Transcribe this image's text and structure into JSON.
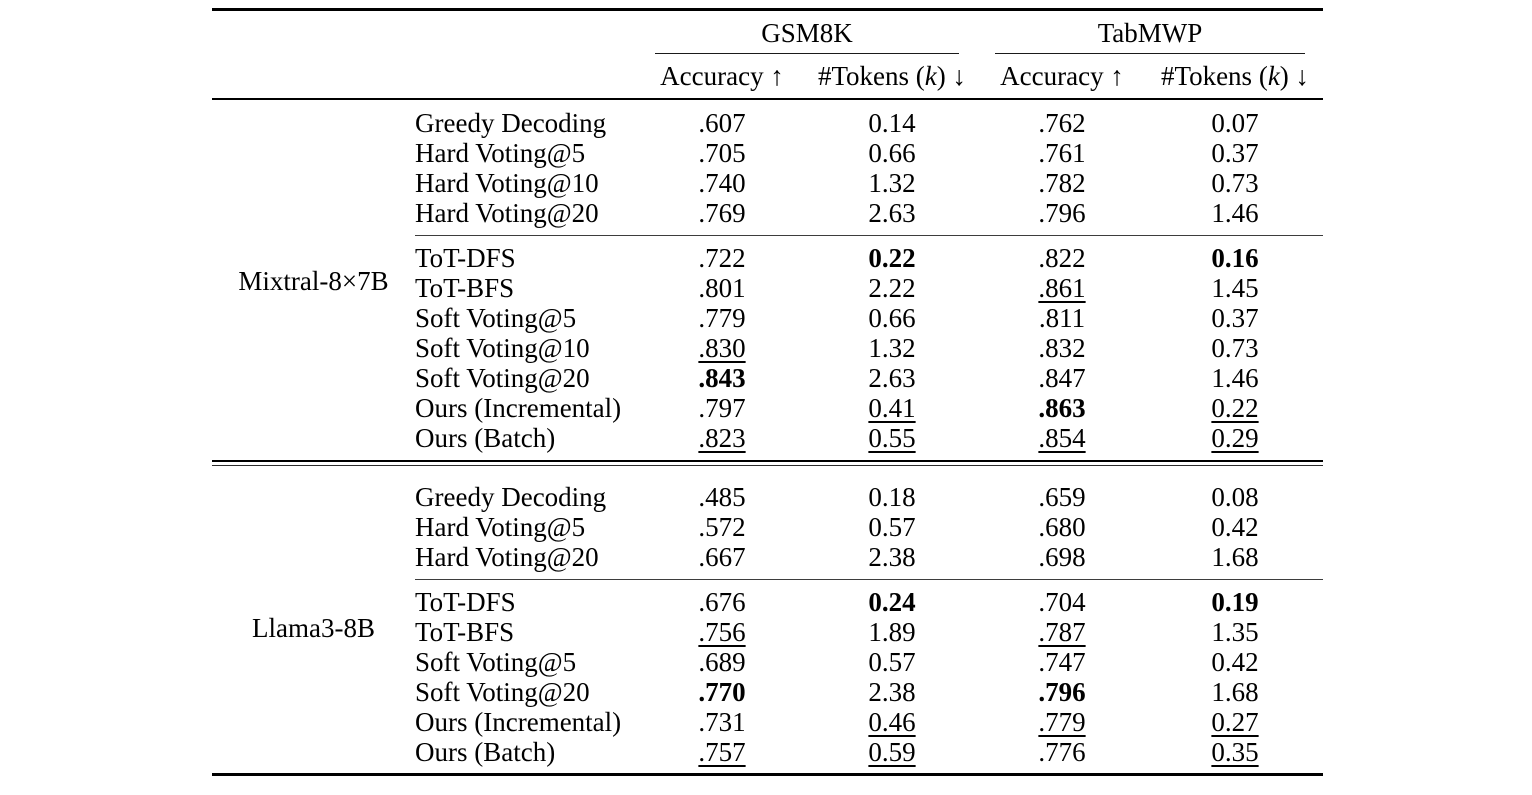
{
  "table": {
    "groups": [
      {
        "label": "GSM8K"
      },
      {
        "label": "TabMWP"
      }
    ],
    "subheader": {
      "accuracy": "Accuracy ↑",
      "tokens_prefix": "#Tokens (",
      "tokens_k": "k",
      "tokens_suffix": ") ↓"
    },
    "sections": [
      {
        "model": "Mixtral-8×7B",
        "row_groups": [
          {
            "rows": [
              {
                "method": "Greedy Decoding",
                "cells": [
                  {
                    "v": ".607",
                    "s": "plain"
                  },
                  {
                    "v": "0.14",
                    "s": "plain"
                  },
                  {
                    "v": ".762",
                    "s": "plain"
                  },
                  {
                    "v": "0.07",
                    "s": "plain"
                  }
                ]
              },
              {
                "method": "Hard Voting@5",
                "cells": [
                  {
                    "v": ".705",
                    "s": "plain"
                  },
                  {
                    "v": "0.66",
                    "s": "plain"
                  },
                  {
                    "v": ".761",
                    "s": "plain"
                  },
                  {
                    "v": "0.37",
                    "s": "plain"
                  }
                ]
              },
              {
                "method": "Hard Voting@10",
                "cells": [
                  {
                    "v": ".740",
                    "s": "plain"
                  },
                  {
                    "v": "1.32",
                    "s": "plain"
                  },
                  {
                    "v": ".782",
                    "s": "plain"
                  },
                  {
                    "v": "0.73",
                    "s": "plain"
                  }
                ]
              },
              {
                "method": "Hard Voting@20",
                "cells": [
                  {
                    "v": ".769",
                    "s": "plain"
                  },
                  {
                    "v": "2.63",
                    "s": "plain"
                  },
                  {
                    "v": ".796",
                    "s": "plain"
                  },
                  {
                    "v": "1.46",
                    "s": "plain"
                  }
                ]
              }
            ]
          },
          {
            "rows": [
              {
                "method": "ToT-DFS",
                "cells": [
                  {
                    "v": ".722",
                    "s": "plain"
                  },
                  {
                    "v": "0.22",
                    "s": "bold"
                  },
                  {
                    "v": ".822",
                    "s": "plain"
                  },
                  {
                    "v": "0.16",
                    "s": "bold"
                  }
                ]
              },
              {
                "method": "ToT-BFS",
                "cells": [
                  {
                    "v": ".801",
                    "s": "plain"
                  },
                  {
                    "v": "2.22",
                    "s": "plain"
                  },
                  {
                    "v": ".861",
                    "s": "underline"
                  },
                  {
                    "v": "1.45",
                    "s": "plain"
                  }
                ]
              },
              {
                "method": "Soft Voting@5",
                "cells": [
                  {
                    "v": ".779",
                    "s": "plain"
                  },
                  {
                    "v": "0.66",
                    "s": "plain"
                  },
                  {
                    "v": ".811",
                    "s": "plain"
                  },
                  {
                    "v": "0.37",
                    "s": "plain"
                  }
                ]
              },
              {
                "method": "Soft Voting@10",
                "cells": [
                  {
                    "v": ".830",
                    "s": "underline"
                  },
                  {
                    "v": "1.32",
                    "s": "plain"
                  },
                  {
                    "v": ".832",
                    "s": "plain"
                  },
                  {
                    "v": "0.73",
                    "s": "plain"
                  }
                ]
              },
              {
                "method": "Soft Voting@20",
                "cells": [
                  {
                    "v": ".843",
                    "s": "bold"
                  },
                  {
                    "v": "2.63",
                    "s": "plain"
                  },
                  {
                    "v": ".847",
                    "s": "plain"
                  },
                  {
                    "v": "1.46",
                    "s": "plain"
                  }
                ]
              },
              {
                "method": "Ours (Incremental)",
                "cells": [
                  {
                    "v": ".797",
                    "s": "plain"
                  },
                  {
                    "v": "0.41",
                    "s": "underline"
                  },
                  {
                    "v": ".863",
                    "s": "bold"
                  },
                  {
                    "v": "0.22",
                    "s": "underline"
                  }
                ]
              },
              {
                "method": "Ours (Batch)",
                "cells": [
                  {
                    "v": ".823",
                    "s": "underline"
                  },
                  {
                    "v": "0.55",
                    "s": "underline"
                  },
                  {
                    "v": ".854",
                    "s": "underline"
                  },
                  {
                    "v": "0.29",
                    "s": "underline"
                  }
                ]
              }
            ]
          }
        ]
      },
      {
        "model": "Llama3-8B",
        "row_groups": [
          {
            "rows": [
              {
                "method": "Greedy Decoding",
                "cells": [
                  {
                    "v": ".485",
                    "s": "plain"
                  },
                  {
                    "v": "0.18",
                    "s": "plain"
                  },
                  {
                    "v": ".659",
                    "s": "plain"
                  },
                  {
                    "v": "0.08",
                    "s": "plain"
                  }
                ]
              },
              {
                "method": "Hard Voting@5",
                "cells": [
                  {
                    "v": ".572",
                    "s": "plain"
                  },
                  {
                    "v": "0.57",
                    "s": "plain"
                  },
                  {
                    "v": ".680",
                    "s": "plain"
                  },
                  {
                    "v": "0.42",
                    "s": "plain"
                  }
                ]
              },
              {
                "method": "Hard Voting@20",
                "cells": [
                  {
                    "v": ".667",
                    "s": "plain"
                  },
                  {
                    "v": "2.38",
                    "s": "plain"
                  },
                  {
                    "v": ".698",
                    "s": "plain"
                  },
                  {
                    "v": "1.68",
                    "s": "plain"
                  }
                ]
              }
            ]
          },
          {
            "rows": [
              {
                "method": "ToT-DFS",
                "cells": [
                  {
                    "v": ".676",
                    "s": "plain"
                  },
                  {
                    "v": "0.24",
                    "s": "bold"
                  },
                  {
                    "v": ".704",
                    "s": "plain"
                  },
                  {
                    "v": "0.19",
                    "s": "bold"
                  }
                ]
              },
              {
                "method": "ToT-BFS",
                "cells": [
                  {
                    "v": ".756",
                    "s": "underline"
                  },
                  {
                    "v": "1.89",
                    "s": "plain"
                  },
                  {
                    "v": ".787",
                    "s": "underline"
                  },
                  {
                    "v": "1.35",
                    "s": "plain"
                  }
                ]
              },
              {
                "method": "Soft Voting@5",
                "cells": [
                  {
                    "v": ".689",
                    "s": "plain"
                  },
                  {
                    "v": "0.57",
                    "s": "plain"
                  },
                  {
                    "v": ".747",
                    "s": "plain"
                  },
                  {
                    "v": "0.42",
                    "s": "plain"
                  }
                ]
              },
              {
                "method": "Soft Voting@20",
                "cells": [
                  {
                    "v": ".770",
                    "s": "bold"
                  },
                  {
                    "v": "2.38",
                    "s": "plain"
                  },
                  {
                    "v": ".796",
                    "s": "bold"
                  },
                  {
                    "v": "1.68",
                    "s": "plain"
                  }
                ]
              },
              {
                "method": "Ours (Incremental)",
                "cells": [
                  {
                    "v": ".731",
                    "s": "plain"
                  },
                  {
                    "v": "0.46",
                    "s": "underline"
                  },
                  {
                    "v": ".779",
                    "s": "underline"
                  },
                  {
                    "v": "0.27",
                    "s": "underline"
                  }
                ]
              },
              {
                "method": "Ours (Batch)",
                "cells": [
                  {
                    "v": ".757",
                    "s": "underline"
                  },
                  {
                    "v": "0.59",
                    "s": "underline"
                  },
                  {
                    "v": ".776",
                    "s": "plain"
                  },
                  {
                    "v": "0.35",
                    "s": "underline"
                  }
                ]
              }
            ]
          }
        ]
      }
    ]
  }
}
